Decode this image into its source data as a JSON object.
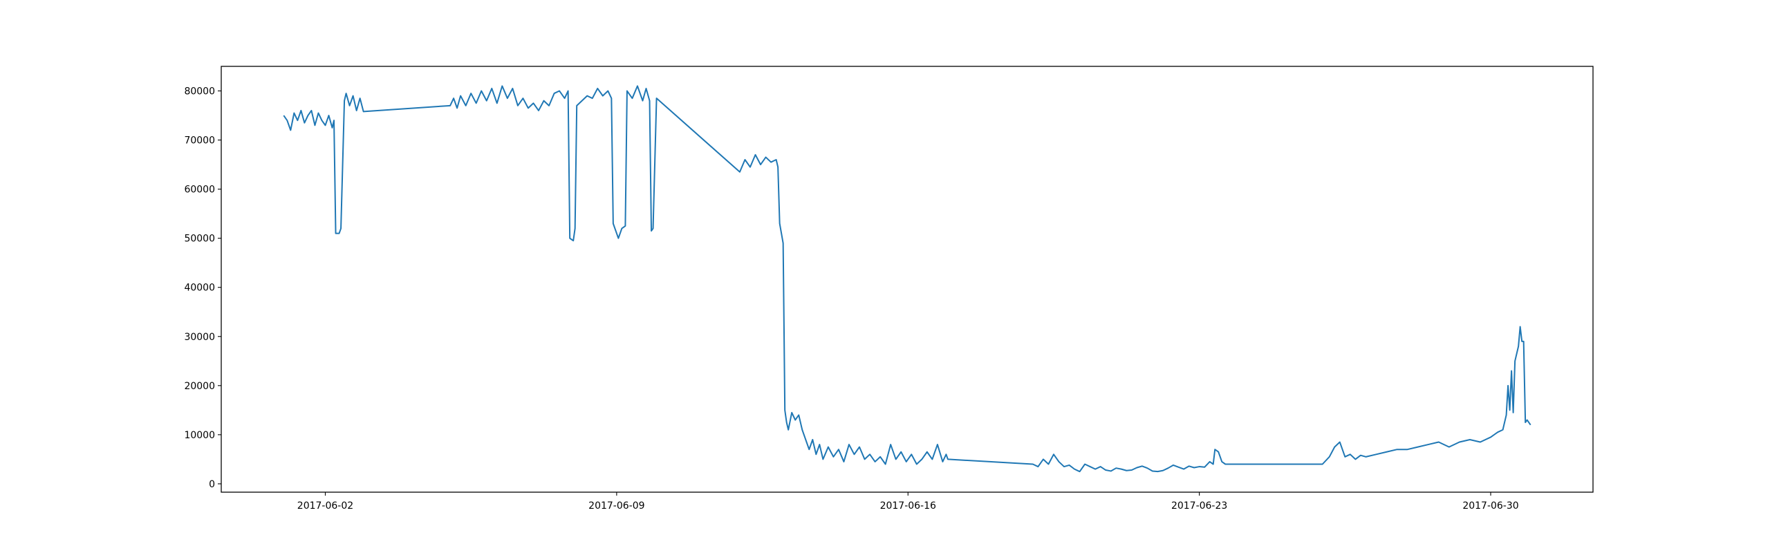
{
  "chart_data": {
    "type": "line",
    "color": "#1f77b4",
    "xlim": [
      "2017-05-30 12:00",
      "2017-07-02 11:00"
    ],
    "xticks": [
      "2017-06-02",
      "2017-06-09",
      "2017-06-16",
      "2017-06-23",
      "2017-06-30"
    ],
    "ylim": [
      -1700,
      85000
    ],
    "yticks": [
      0,
      10000,
      20000,
      30000,
      40000,
      50000,
      60000,
      70000,
      80000
    ],
    "x": [
      "2017-06-01 00:00",
      "2017-06-01 02:00",
      "2017-06-01 04:00",
      "2017-06-01 06:00",
      "2017-06-01 08:00",
      "2017-06-01 10:00",
      "2017-06-01 12:00",
      "2017-06-01 14:00",
      "2017-06-01 16:00",
      "2017-06-01 18:00",
      "2017-06-01 20:00",
      "2017-06-01 22:00",
      "2017-06-02 00:00",
      "2017-06-02 02:00",
      "2017-06-02 04:00",
      "2017-06-02 05:00",
      "2017-06-02 06:00",
      "2017-06-02 08:00",
      "2017-06-02 09:00",
      "2017-06-02 11:00",
      "2017-06-02 12:00",
      "2017-06-02 14:00",
      "2017-06-02 16:00",
      "2017-06-02 18:00",
      "2017-06-02 20:00",
      "2017-06-02 22:00",
      "2017-06-05 00:00",
      "2017-06-05 02:00",
      "2017-06-05 04:00",
      "2017-06-05 06:00",
      "2017-06-05 09:00",
      "2017-06-05 12:00",
      "2017-06-05 15:00",
      "2017-06-05 18:00",
      "2017-06-05 21:00",
      "2017-06-06 00:00",
      "2017-06-06 03:00",
      "2017-06-06 06:00",
      "2017-06-06 09:00",
      "2017-06-06 12:00",
      "2017-06-06 15:00",
      "2017-06-06 18:00",
      "2017-06-06 21:00",
      "2017-06-07 00:00",
      "2017-06-07 03:00",
      "2017-06-07 06:00",
      "2017-06-07 09:00",
      "2017-06-07 12:00",
      "2017-06-07 15:00",
      "2017-06-07 18:00",
      "2017-06-07 20:00",
      "2017-06-07 21:00",
      "2017-06-07 23:00",
      "2017-06-08 00:00",
      "2017-06-08 01:00",
      "2017-06-08 04:00",
      "2017-06-08 07:00",
      "2017-06-08 10:00",
      "2017-06-08 13:00",
      "2017-06-08 16:00",
      "2017-06-08 19:00",
      "2017-06-08 21:00",
      "2017-06-08 22:00",
      "2017-06-09 01:00",
      "2017-06-09 03:00",
      "2017-06-09 05:00",
      "2017-06-09 06:00",
      "2017-06-09 09:00",
      "2017-06-09 12:00",
      "2017-06-09 15:00",
      "2017-06-09 17:00",
      "2017-06-09 19:00",
      "2017-06-09 20:00",
      "2017-06-09 21:00",
      "2017-06-09 23:00",
      "2017-06-11 23:00",
      "2017-06-12 02:00",
      "2017-06-12 05:00",
      "2017-06-12 08:00",
      "2017-06-12 11:00",
      "2017-06-12 14:00",
      "2017-06-12 17:00",
      "2017-06-12 20:00",
      "2017-06-12 21:00",
      "2017-06-12 22:00",
      "2017-06-13 00:00",
      "2017-06-13 01:00",
      "2017-06-13 02:00",
      "2017-06-13 03:00",
      "2017-06-13 05:00",
      "2017-06-13 07:00",
      "2017-06-13 09:00",
      "2017-06-13 11:00",
      "2017-06-13 13:00",
      "2017-06-13 15:00",
      "2017-06-13 17:00",
      "2017-06-13 19:00",
      "2017-06-13 21:00",
      "2017-06-13 23:00",
      "2017-06-14 02:00",
      "2017-06-14 05:00",
      "2017-06-14 08:00",
      "2017-06-14 11:00",
      "2017-06-14 14:00",
      "2017-06-14 17:00",
      "2017-06-14 20:00",
      "2017-06-14 23:00",
      "2017-06-15 02:00",
      "2017-06-15 05:00",
      "2017-06-15 08:00",
      "2017-06-15 11:00",
      "2017-06-15 14:00",
      "2017-06-15 17:00",
      "2017-06-15 20:00",
      "2017-06-15 23:00",
      "2017-06-16 02:00",
      "2017-06-16 05:00",
      "2017-06-16 08:00",
      "2017-06-16 11:00",
      "2017-06-16 14:00",
      "2017-06-16 17:00",
      "2017-06-16 20:00",
      "2017-06-16 22:00",
      "2017-06-16 23:00",
      "2017-06-19 00:00",
      "2017-06-19 03:00",
      "2017-06-19 06:00",
      "2017-06-19 09:00",
      "2017-06-19 12:00",
      "2017-06-19 15:00",
      "2017-06-19 18:00",
      "2017-06-19 21:00",
      "2017-06-20 00:00",
      "2017-06-20 03:00",
      "2017-06-20 06:00",
      "2017-06-20 09:00",
      "2017-06-20 12:00",
      "2017-06-20 15:00",
      "2017-06-20 18:00",
      "2017-06-20 21:00",
      "2017-06-21 00:00",
      "2017-06-21 03:00",
      "2017-06-21 06:00",
      "2017-06-21 09:00",
      "2017-06-21 12:00",
      "2017-06-21 15:00",
      "2017-06-21 18:00",
      "2017-06-21 21:00",
      "2017-06-22 00:00",
      "2017-06-22 03:00",
      "2017-06-22 06:00",
      "2017-06-22 09:00",
      "2017-06-22 12:00",
      "2017-06-22 15:00",
      "2017-06-22 18:00",
      "2017-06-22 21:00",
      "2017-06-23 00:00",
      "2017-06-23 03:00",
      "2017-06-23 06:00",
      "2017-06-23 08:00",
      "2017-06-23 09:00",
      "2017-06-23 11:00",
      "2017-06-23 13:00",
      "2017-06-23 15:00",
      "2017-06-25 23:00",
      "2017-06-26 03:00",
      "2017-06-26 06:00",
      "2017-06-26 09:00",
      "2017-06-26 12:00",
      "2017-06-26 15:00",
      "2017-06-26 18:00",
      "2017-06-26 21:00",
      "2017-06-27 00:00",
      "2017-06-27 06:00",
      "2017-06-27 12:00",
      "2017-06-27 18:00",
      "2017-06-28 00:00",
      "2017-06-28 06:00",
      "2017-06-28 12:00",
      "2017-06-28 18:00",
      "2017-06-29 00:00",
      "2017-06-29 06:00",
      "2017-06-29 12:00",
      "2017-06-29 18:00",
      "2017-06-30 00:00",
      "2017-06-30 04:00",
      "2017-06-30 07:00",
      "2017-06-30 09:00",
      "2017-06-30 10:00",
      "2017-06-30 11:00",
      "2017-06-30 12:00",
      "2017-06-30 13:00",
      "2017-06-30 14:00",
      "2017-06-30 16:00",
      "2017-06-30 17:00",
      "2017-06-30 18:00",
      "2017-06-30 19:00",
      "2017-06-30 20:00",
      "2017-06-30 21:00",
      "2017-06-30 23:00"
    ],
    "values": [
      75000,
      74000,
      72000,
      75500,
      74000,
      76000,
      73500,
      75000,
      76000,
      73000,
      75500,
      74000,
      73000,
      75000,
      72500,
      74000,
      51000,
      51000,
      52000,
      78000,
      79500,
      77000,
      79000,
      76000,
      78500,
      75800,
      77000,
      78500,
      76500,
      79000,
      77000,
      79500,
      77500,
      80000,
      78000,
      80500,
      77500,
      81000,
      78500,
      80500,
      77000,
      78500,
      76500,
      77500,
      76000,
      78000,
      77000,
      79500,
      80000,
      78500,
      80000,
      50000,
      49500,
      52000,
      77000,
      78000,
      79000,
      78500,
      80500,
      79000,
      80000,
      78500,
      53000,
      50000,
      52000,
      52500,
      80000,
      78500,
      81000,
      78000,
      80500,
      78000,
      51500,
      52000,
      78500,
      63500,
      66000,
      64500,
      67000,
      65000,
      66500,
      65500,
      66000,
      64500,
      53000,
      49000,
      15000,
      12500,
      11000,
      14500,
      13000,
      14000,
      11000,
      9000,
      7000,
      9000,
      6000,
      8000,
      5000,
      7500,
      5500,
      7000,
      4500,
      8000,
      6000,
      7500,
      5000,
      6000,
      4500,
      5500,
      4000,
      8000,
      5000,
      6500,
      4500,
      6000,
      4000,
      5000,
      6500,
      5000,
      8000,
      4500,
      6000,
      5000,
      4000,
      3500,
      5000,
      4000,
      6000,
      4500,
      3500,
      3800,
      3000,
      2500,
      4000,
      3500,
      3000,
      3500,
      2800,
      2600,
      3200,
      3000,
      2700,
      2800,
      3300,
      3600,
      3200,
      2600,
      2500,
      2700,
      3200,
      3800,
      3400,
      3000,
      3600,
      3300,
      3500,
      3400,
      4500,
      4000,
      7000,
      6500,
      4500,
      4000,
      4000,
      5500,
      7500,
      8500,
      5500,
      6000,
      5000,
      5800,
      5500,
      6000,
      6500,
      7000,
      7000,
      7500,
      8000,
      8500,
      7500,
      8500,
      9000,
      8500,
      9500,
      10500,
      11000,
      14000,
      20000,
      15000,
      23000,
      14500,
      25000,
      28000,
      32000,
      29000,
      29000,
      12500,
      13000,
      12000
    ]
  }
}
